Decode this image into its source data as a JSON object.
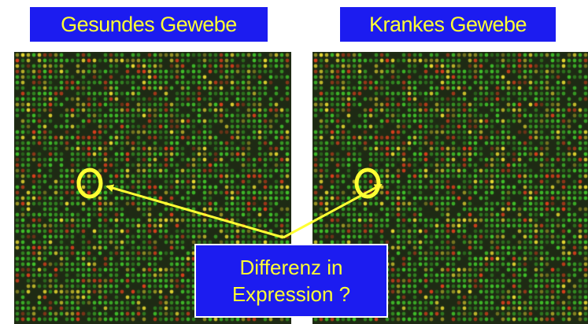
{
  "panels": {
    "left": {
      "label": "Gesundes Gewebe"
    },
    "right": {
      "label": "Krankes Gewebe"
    }
  },
  "callout": {
    "line1": "Differenz in",
    "line2": "Expression ?"
  },
  "colors": {
    "label_background": "#1c1cf0",
    "label_text": "#ffff33",
    "marker": "#ffff33",
    "array_background": "#1e2a14",
    "spot_green": "#3fbf2a",
    "spot_red": "#d8401c",
    "spot_yellow": "#e6d830"
  }
}
